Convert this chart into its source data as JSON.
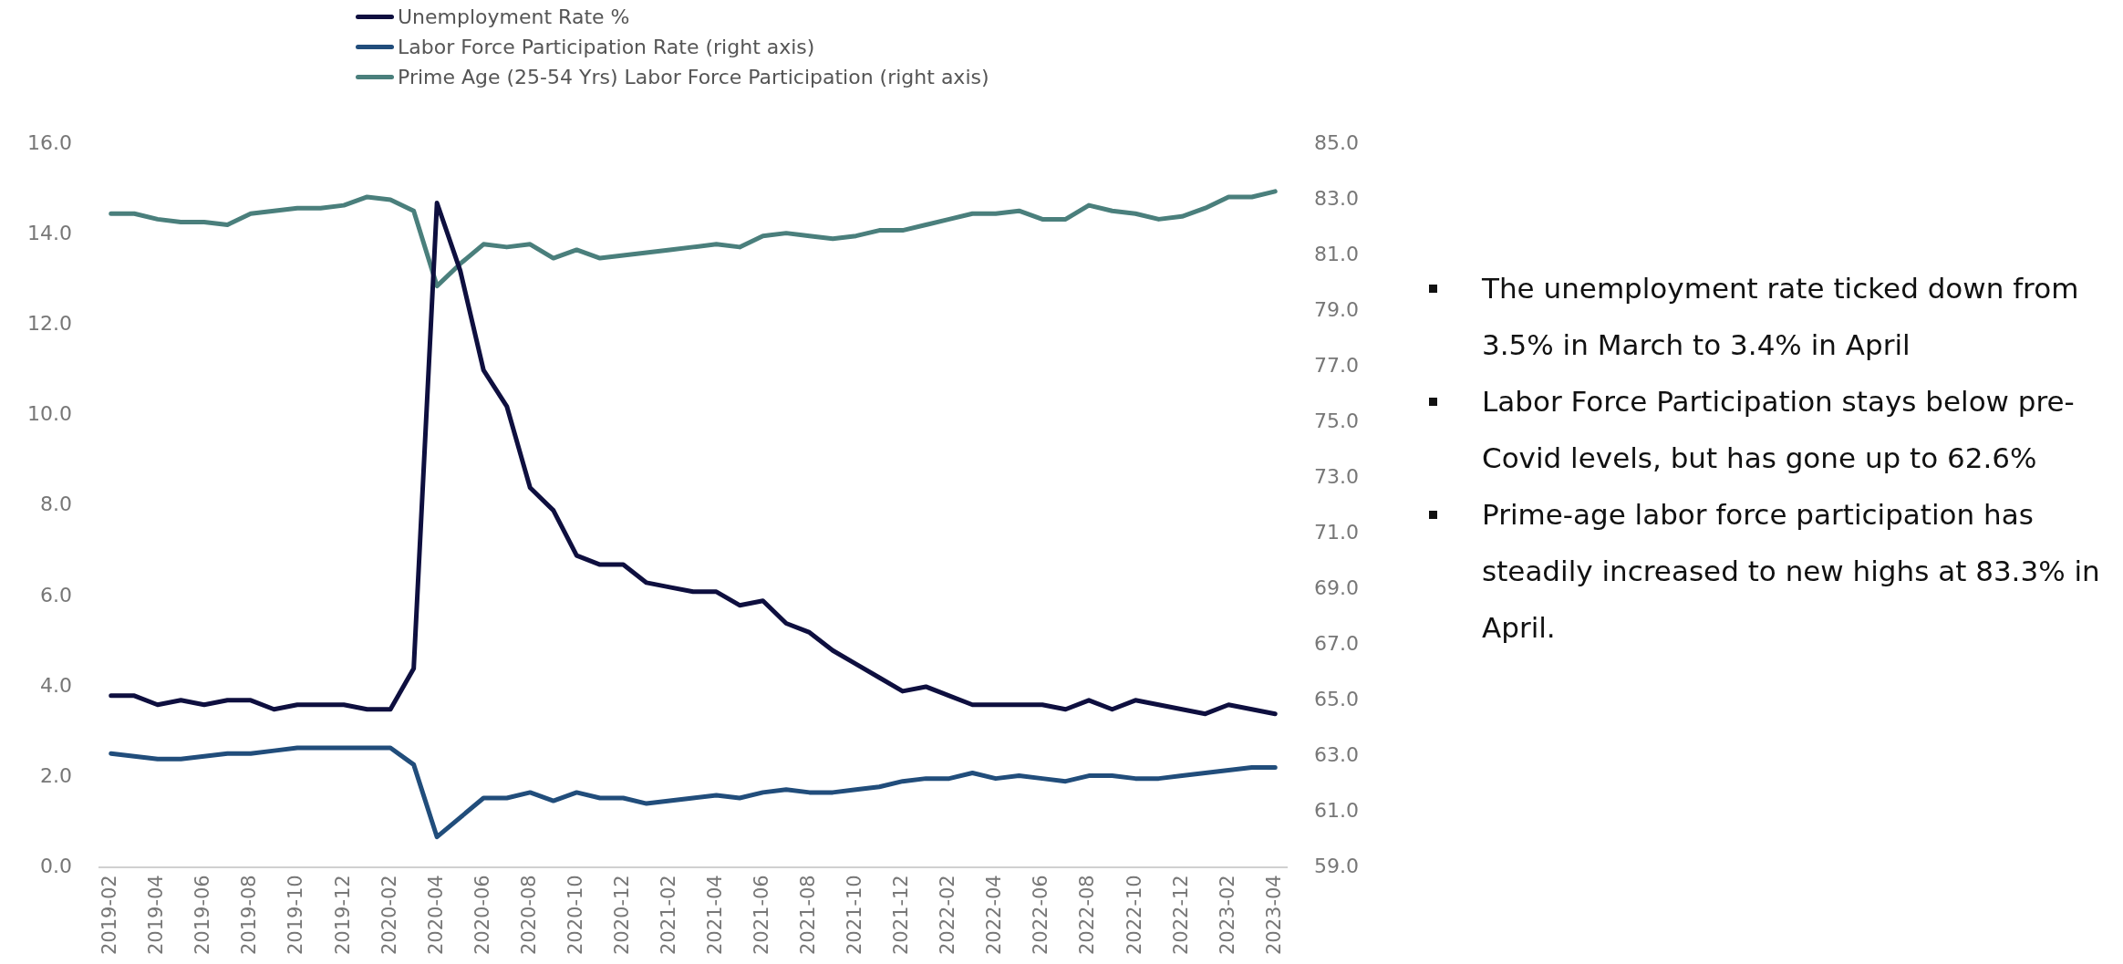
{
  "chart_data": {
    "type": "line",
    "legend": "top",
    "grid": false,
    "marker": "none",
    "line_style": "solid",
    "categories": [
      "2019-02",
      null,
      "2019-04",
      null,
      "2019-06",
      null,
      "2019-08",
      null,
      "2019-10",
      null,
      "2019-12",
      null,
      "2020-02",
      null,
      "2020-04",
      null,
      "2020-06",
      null,
      "2020-08",
      null,
      "2020-10",
      null,
      "2020-12",
      null,
      "2021-02",
      null,
      "2021-04",
      null,
      "2021-06",
      null,
      "2021-08",
      null,
      "2021-10",
      null,
      "2021-12",
      null,
      "2022-02",
      null,
      "2022-04",
      null,
      "2022-06",
      null,
      "2022-08",
      null,
      "2022-10",
      null,
      "2022-12",
      null,
      "2023-02",
      null,
      "2023-04"
    ],
    "ylim": [
      0,
      16
    ],
    "yticks": [
      {
        "value": 0,
        "label": "0.0"
      },
      {
        "value": 2,
        "label": "2.0"
      },
      {
        "value": 4,
        "label": "4.0"
      },
      {
        "value": 6,
        "label": "6.0"
      },
      {
        "value": 8,
        "label": "8.0"
      },
      {
        "value": 10,
        "label": "10.0"
      },
      {
        "value": 12,
        "label": "12.0"
      },
      {
        "value": 14,
        "label": "14.0"
      },
      {
        "value": 16,
        "label": "16.0"
      }
    ],
    "y2lim": [
      59,
      85
    ],
    "y2ticks": [
      {
        "value": 59,
        "label": "59.0"
      },
      {
        "value": 61,
        "label": "61.0"
      },
      {
        "value": 63,
        "label": "63.0"
      },
      {
        "value": 65,
        "label": "65.0"
      },
      {
        "value": 67,
        "label": "67.0"
      },
      {
        "value": 69,
        "label": "69.0"
      },
      {
        "value": 71,
        "label": "71.0"
      },
      {
        "value": 73,
        "label": "73.0"
      },
      {
        "value": 75,
        "label": "75.0"
      },
      {
        "value": 77,
        "label": "77.0"
      },
      {
        "value": 79,
        "label": "79.0"
      },
      {
        "value": 81,
        "label": "81.0"
      },
      {
        "value": 83,
        "label": "83.0"
      },
      {
        "value": 85,
        "label": "85.0"
      }
    ],
    "series": [
      {
        "name": "Unemployment Rate %",
        "color": "#0e0f3f",
        "values": [
          3.8,
          3.8,
          3.6,
          3.7,
          3.6,
          3.7,
          3.7,
          3.5,
          3.6,
          3.6,
          3.6,
          3.5,
          3.5,
          4.4,
          14.7,
          13.2,
          11.0,
          10.2,
          8.4,
          7.9,
          6.9,
          6.7,
          6.7,
          6.3,
          6.2,
          6.1,
          6.1,
          5.8,
          5.9,
          5.4,
          5.2,
          4.8,
          4.5,
          4.2,
          3.9,
          4.0,
          3.8,
          3.6,
          3.6,
          3.6,
          3.6,
          3.5,
          3.7,
          3.5,
          3.7,
          3.6,
          3.5,
          3.4,
          3.6,
          3.5,
          3.4
        ]
      },
      {
        "name": "Labor Force Participation Rate (right axis)",
        "color": "#214d7b",
        "axis": "y2",
        "values": [
          63.1,
          63.0,
          62.9,
          62.9,
          63.0,
          63.1,
          63.1,
          63.2,
          63.3,
          63.3,
          63.3,
          63.3,
          63.3,
          62.7,
          60.1,
          60.8,
          61.5,
          61.5,
          61.7,
          61.4,
          61.7,
          61.5,
          61.5,
          61.3,
          61.4,
          61.5,
          61.6,
          61.5,
          61.7,
          61.8,
          61.7,
          61.7,
          61.8,
          61.9,
          62.1,
          62.2,
          62.2,
          62.4,
          62.2,
          62.3,
          62.2,
          62.1,
          62.3,
          62.3,
          62.2,
          62.2,
          62.3,
          62.4,
          62.5,
          62.6,
          62.6
        ]
      },
      {
        "name": "Prime Age (25-54 Yrs) Labor Force Participation (right axis)",
        "color": "#4a7f7c",
        "axis": "y2",
        "values": [
          82.5,
          82.5,
          82.3,
          82.2,
          82.2,
          82.1,
          82.5,
          82.6,
          82.7,
          82.7,
          82.8,
          83.1,
          83.0,
          82.6,
          79.9,
          80.7,
          81.4,
          81.3,
          81.4,
          80.9,
          81.2,
          80.9,
          81.0,
          81.1,
          81.2,
          81.3,
          81.4,
          81.3,
          81.7,
          81.8,
          81.7,
          81.6,
          81.7,
          81.9,
          81.9,
          82.1,
          82.3,
          82.5,
          82.5,
          82.6,
          82.3,
          82.3,
          82.8,
          82.6,
          82.5,
          82.3,
          82.4,
          82.7,
          83.1,
          83.1,
          83.3
        ]
      }
    ],
    "annotations": [
      "The unemployment rate ticked down from 3.5% in March to 3.4% in April",
      "Labor Force Participation stays below pre-Covid levels, but has gone up to 62.6%",
      "Prime-age labor force participation has steadily increased to new highs at 83.3% in April."
    ]
  }
}
